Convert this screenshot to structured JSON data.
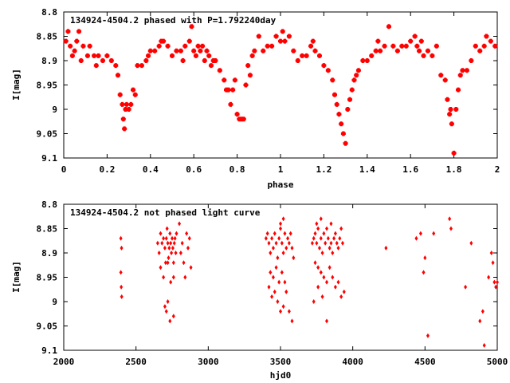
{
  "chart_data": [
    {
      "type": "scatter",
      "title": "134924-4504.2 phased with P=1.792240day",
      "xlabel": "phase",
      "ylabel": "I[mag]",
      "xlim": [
        0,
        2
      ],
      "ylim": [
        8.8,
        9.1
      ],
      "y_inverted": true,
      "xticks": [
        "0",
        "0.2",
        "0.4",
        "0.6",
        "0.8",
        "1",
        "1.2",
        "1.4",
        "1.6",
        "1.8",
        "2"
      ],
      "yticks": [
        "8.8",
        "8.85",
        "8.9",
        "8.95",
        "9",
        "9.05",
        "9.1"
      ],
      "marker": "cross",
      "color": "#ff0000",
      "points": [
        [
          0.01,
          8.86
        ],
        [
          0.02,
          8.84
        ],
        [
          0.03,
          8.87
        ],
        [
          0.04,
          8.89
        ],
        [
          0.05,
          8.88
        ],
        [
          0.06,
          8.86
        ],
        [
          0.07,
          8.84
        ],
        [
          0.08,
          8.9
        ],
        [
          0.09,
          8.87
        ],
        [
          0.11,
          8.89
        ],
        [
          0.12,
          8.87
        ],
        [
          0.14,
          8.89
        ],
        [
          0.15,
          8.91
        ],
        [
          0.16,
          8.89
        ],
        [
          0.18,
          8.9
        ],
        [
          0.2,
          8.89
        ],
        [
          0.22,
          8.9
        ],
        [
          0.24,
          8.91
        ],
        [
          0.25,
          8.93
        ],
        [
          0.26,
          8.97
        ],
        [
          0.27,
          8.99
        ],
        [
          0.275,
          9.02
        ],
        [
          0.28,
          9.04
        ],
        [
          0.285,
          9.0
        ],
        [
          0.29,
          8.99
        ],
        [
          0.3,
          9.0
        ],
        [
          0.31,
          8.99
        ],
        [
          0.32,
          8.96
        ],
        [
          0.33,
          8.97
        ],
        [
          0.34,
          8.91
        ],
        [
          0.36,
          8.91
        ],
        [
          0.38,
          8.9
        ],
        [
          0.39,
          8.89
        ],
        [
          0.4,
          8.88
        ],
        [
          0.42,
          8.88
        ],
        [
          0.44,
          8.87
        ],
        [
          0.45,
          8.86
        ],
        [
          0.46,
          8.86
        ],
        [
          0.48,
          8.87
        ],
        [
          0.5,
          8.89
        ],
        [
          0.52,
          8.88
        ],
        [
          0.54,
          8.88
        ],
        [
          0.55,
          8.9
        ],
        [
          0.56,
          8.87
        ],
        [
          0.58,
          8.86
        ],
        [
          0.59,
          8.83
        ],
        [
          0.6,
          8.88
        ],
        [
          0.61,
          8.89
        ],
        [
          0.62,
          8.87
        ],
        [
          0.63,
          8.88
        ],
        [
          0.64,
          8.87
        ],
        [
          0.65,
          8.9
        ],
        [
          0.66,
          8.88
        ],
        [
          0.67,
          8.89
        ],
        [
          0.68,
          8.91
        ],
        [
          0.69,
          8.9
        ],
        [
          0.7,
          8.9
        ],
        [
          0.72,
          8.92
        ],
        [
          0.74,
          8.94
        ],
        [
          0.75,
          8.96
        ],
        [
          0.76,
          8.96
        ],
        [
          0.77,
          8.99
        ],
        [
          0.78,
          8.96
        ],
        [
          0.79,
          8.94
        ],
        [
          0.8,
          9.01
        ],
        [
          0.81,
          9.02
        ],
        [
          0.82,
          9.02
        ],
        [
          0.83,
          9.02
        ],
        [
          0.84,
          8.95
        ],
        [
          0.85,
          8.91
        ],
        [
          0.86,
          8.93
        ],
        [
          0.87,
          8.89
        ],
        [
          0.88,
          8.88
        ],
        [
          0.9,
          8.85
        ],
        [
          0.92,
          8.88
        ],
        [
          0.94,
          8.87
        ],
        [
          0.96,
          8.87
        ],
        [
          0.98,
          8.85
        ],
        [
          1.0,
          8.86
        ],
        [
          1.01,
          8.84
        ],
        [
          1.02,
          8.86
        ],
        [
          1.04,
          8.85
        ],
        [
          1.06,
          8.88
        ],
        [
          1.08,
          8.9
        ],
        [
          1.1,
          8.89
        ],
        [
          1.12,
          8.89
        ],
        [
          1.14,
          8.87
        ],
        [
          1.15,
          8.86
        ],
        [
          1.16,
          8.88
        ],
        [
          1.18,
          8.89
        ],
        [
          1.2,
          8.91
        ],
        [
          1.22,
          8.92
        ],
        [
          1.24,
          8.94
        ],
        [
          1.25,
          8.97
        ],
        [
          1.26,
          8.99
        ],
        [
          1.27,
          9.01
        ],
        [
          1.28,
          9.03
        ],
        [
          1.29,
          9.05
        ],
        [
          1.3,
          9.07
        ],
        [
          1.31,
          9.0
        ],
        [
          1.32,
          8.98
        ],
        [
          1.33,
          8.96
        ],
        [
          1.34,
          8.94
        ],
        [
          1.35,
          8.93
        ],
        [
          1.36,
          8.92
        ],
        [
          1.38,
          8.9
        ],
        [
          1.4,
          8.9
        ],
        [
          1.42,
          8.89
        ],
        [
          1.44,
          8.88
        ],
        [
          1.45,
          8.86
        ],
        [
          1.46,
          8.88
        ],
        [
          1.48,
          8.87
        ],
        [
          1.5,
          8.83
        ],
        [
          1.52,
          8.87
        ],
        [
          1.54,
          8.88
        ],
        [
          1.56,
          8.87
        ],
        [
          1.58,
          8.87
        ],
        [
          1.6,
          8.86
        ],
        [
          1.62,
          8.85
        ],
        [
          1.63,
          8.87
        ],
        [
          1.64,
          8.88
        ],
        [
          1.65,
          8.86
        ],
        [
          1.66,
          8.89
        ],
        [
          1.68,
          8.88
        ],
        [
          1.7,
          8.89
        ],
        [
          1.72,
          8.87
        ],
        [
          1.74,
          8.93
        ],
        [
          1.76,
          8.94
        ],
        [
          1.77,
          8.98
        ],
        [
          1.78,
          9.01
        ],
        [
          1.785,
          9.0
        ],
        [
          1.79,
          9.03
        ],
        [
          1.8,
          9.09
        ],
        [
          1.81,
          9.0
        ],
        [
          1.82,
          8.96
        ],
        [
          1.83,
          8.93
        ],
        [
          1.84,
          8.92
        ],
        [
          1.86,
          8.92
        ],
        [
          1.88,
          8.9
        ],
        [
          1.9,
          8.87
        ],
        [
          1.92,
          8.88
        ],
        [
          1.94,
          8.87
        ],
        [
          1.95,
          8.85
        ],
        [
          1.97,
          8.86
        ],
        [
          1.99,
          8.87
        ]
      ]
    },
    {
      "type": "scatter",
      "title": "134924-4504.2 not phased light curve",
      "xlabel": "hjd0",
      "ylabel": "I[mag]",
      "xlim": [
        2000,
        5000
      ],
      "ylim": [
        8.8,
        9.1
      ],
      "y_inverted": true,
      "xticks": [
        "2000",
        "2500",
        "3000",
        "3500",
        "4000",
        "4500",
        "5000"
      ],
      "yticks": [
        "8.8",
        "8.85",
        "8.9",
        "8.95",
        "9",
        "9.05",
        "9.1"
      ],
      "marker": "diamond",
      "color": "#ff0000",
      "points": [
        [
          2395,
          8.87
        ],
        [
          2400,
          8.89
        ],
        [
          2395,
          8.94
        ],
        [
          2398,
          8.97
        ],
        [
          2401,
          8.99
        ],
        [
          2650,
          8.88
        ],
        [
          2660,
          8.9
        ],
        [
          2670,
          8.86
        ],
        [
          2680,
          8.88
        ],
        [
          2690,
          8.87
        ],
        [
          2700,
          8.89
        ],
        [
          2705,
          8.92
        ],
        [
          2710,
          8.87
        ],
        [
          2715,
          8.85
        ],
        [
          2720,
          8.88
        ],
        [
          2725,
          8.91
        ],
        [
          2730,
          8.89
        ],
        [
          2735,
          8.86
        ],
        [
          2740,
          8.88
        ],
        [
          2745,
          8.9
        ],
        [
          2750,
          8.87
        ],
        [
          2755,
          8.89
        ],
        [
          2760,
          8.92
        ],
        [
          2765,
          8.88
        ],
        [
          2770,
          8.87
        ],
        [
          2775,
          8.9
        ],
        [
          2780,
          8.86
        ],
        [
          2670,
          8.93
        ],
        [
          2690,
          8.95
        ],
        [
          2720,
          8.92
        ],
        [
          2740,
          8.96
        ],
        [
          2760,
          8.95
        ],
        [
          2700,
          9.01
        ],
        [
          2710,
          9.02
        ],
        [
          2720,
          9.0
        ],
        [
          2735,
          9.04
        ],
        [
          2760,
          9.03
        ],
        [
          2800,
          8.84
        ],
        [
          2810,
          8.9
        ],
        [
          2820,
          8.88
        ],
        [
          2830,
          8.92
        ],
        [
          2840,
          8.95
        ],
        [
          2850,
          8.86
        ],
        [
          2860,
          8.89
        ],
        [
          2870,
          8.87
        ],
        [
          2880,
          8.93
        ],
        [
          3400,
          8.87
        ],
        [
          3410,
          8.86
        ],
        [
          3420,
          8.88
        ],
        [
          3430,
          8.9
        ],
        [
          3440,
          8.87
        ],
        [
          3450,
          8.89
        ],
        [
          3460,
          8.86
        ],
        [
          3470,
          8.88
        ],
        [
          3480,
          8.91
        ],
        [
          3490,
          8.87
        ],
        [
          3500,
          8.85
        ],
        [
          3510,
          8.88
        ],
        [
          3520,
          8.9
        ],
        [
          3530,
          8.86
        ],
        [
          3540,
          8.89
        ],
        [
          3550,
          8.87
        ],
        [
          3560,
          8.88
        ],
        [
          3570,
          8.86
        ],
        [
          3580,
          8.89
        ],
        [
          3590,
          8.91
        ],
        [
          3430,
          8.94
        ],
        [
          3450,
          8.95
        ],
        [
          3470,
          8.93
        ],
        [
          3490,
          8.96
        ],
        [
          3510,
          8.94
        ],
        [
          3530,
          8.96
        ],
        [
          3420,
          8.97
        ],
        [
          3440,
          8.99
        ],
        [
          3460,
          8.98
        ],
        [
          3480,
          9.0
        ],
        [
          3500,
          9.02
        ],
        [
          3520,
          9.01
        ],
        [
          3540,
          8.98
        ],
        [
          3560,
          9.02
        ],
        [
          3580,
          9.04
        ],
        [
          3500,
          8.84
        ],
        [
          3520,
          8.83
        ],
        [
          3720,
          8.88
        ],
        [
          3730,
          8.87
        ],
        [
          3740,
          8.86
        ],
        [
          3750,
          8.88
        ],
        [
          3760,
          8.85
        ],
        [
          3770,
          8.89
        ],
        [
          3780,
          8.87
        ],
        [
          3790,
          8.9
        ],
        [
          3800,
          8.86
        ],
        [
          3810,
          8.88
        ],
        [
          3820,
          8.85
        ],
        [
          3830,
          8.87
        ],
        [
          3840,
          8.89
        ],
        [
          3850,
          8.88
        ],
        [
          3860,
          8.9
        ],
        [
          3870,
          8.87
        ],
        [
          3880,
          8.86
        ],
        [
          3890,
          8.88
        ],
        [
          3900,
          8.89
        ],
        [
          3910,
          8.87
        ],
        [
          3920,
          8.85
        ],
        [
          3930,
          8.88
        ],
        [
          3740,
          8.92
        ],
        [
          3760,
          8.93
        ],
        [
          3780,
          8.94
        ],
        [
          3800,
          8.95
        ],
        [
          3820,
          8.96
        ],
        [
          3840,
          8.93
        ],
        [
          3860,
          8.95
        ],
        [
          3880,
          8.97
        ],
        [
          3900,
          8.96
        ],
        [
          3920,
          8.99
        ],
        [
          3940,
          8.98
        ],
        [
          3730,
          9.0
        ],
        [
          3760,
          8.97
        ],
        [
          3790,
          8.99
        ],
        [
          3820,
          9.04
        ],
        [
          3750,
          8.84
        ],
        [
          3780,
          8.83
        ],
        [
          3850,
          8.84
        ],
        [
          4230,
          8.89
        ],
        [
          4440,
          8.87
        ],
        [
          4470,
          8.86
        ],
        [
          4490,
          8.94
        ],
        [
          4500,
          8.91
        ],
        [
          4520,
          9.07
        ],
        [
          4560,
          8.86
        ],
        [
          4670,
          8.83
        ],
        [
          4680,
          8.85
        ],
        [
          4780,
          8.97
        ],
        [
          4820,
          8.88
        ],
        [
          4880,
          9.04
        ],
        [
          4900,
          9.02
        ],
        [
          4910,
          9.09
        ],
        [
          4940,
          8.95
        ],
        [
          4960,
          8.9
        ],
        [
          4970,
          8.92
        ],
        [
          4980,
          8.96
        ],
        [
          4990,
          8.97
        ],
        [
          5000,
          8.96
        ]
      ]
    }
  ]
}
